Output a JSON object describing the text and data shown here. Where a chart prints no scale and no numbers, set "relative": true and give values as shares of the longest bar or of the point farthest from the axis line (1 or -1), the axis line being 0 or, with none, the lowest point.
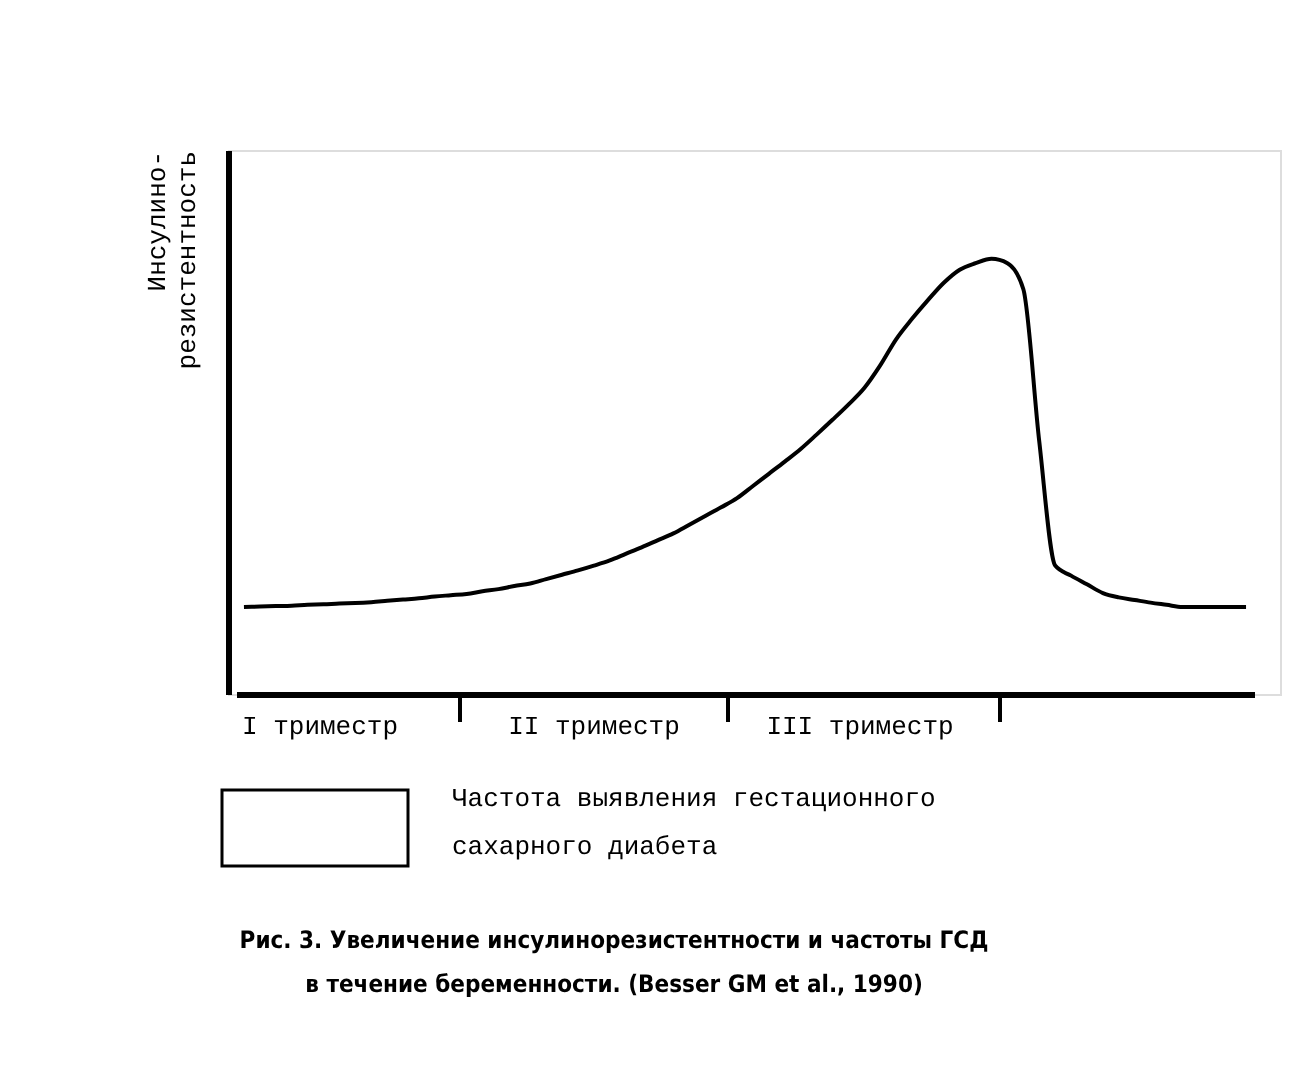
{
  "chart_data": {
    "type": "line",
    "relative": true,
    "ylabel": "Инсулино-\nрезистентность",
    "categories": [
      null,
      null,
      null,
      null,
      null,
      null,
      null,
      null,
      null,
      null,
      null,
      null,
      null,
      null,
      null,
      null,
      null,
      null,
      null,
      null,
      null,
      null,
      null,
      null,
      null,
      null,
      null,
      null,
      null,
      null,
      null,
      null,
      null,
      null,
      null,
      null,
      null,
      null,
      null,
      null,
      null,
      null,
      null,
      null,
      null,
      null,
      null,
      null,
      null,
      null,
      null,
      null,
      null,
      null,
      null,
      null,
      null,
      null,
      null,
      null,
      null,
      null,
      null,
      null
    ],
    "series": [
      {
        "color": "#000000",
        "values": [
          0.2,
          0.201,
          0.202,
          0.203,
          0.205,
          0.206,
          0.208,
          0.209,
          0.211,
          0.214,
          0.217,
          0.22,
          0.224,
          0.227,
          0.23,
          0.236,
          0.241,
          0.248,
          0.254,
          0.264,
          0.274,
          0.284,
          0.295,
          0.307,
          0.322,
          0.337,
          0.353,
          0.369,
          0.389,
          0.409,
          0.429,
          0.45,
          0.478,
          0.506,
          0.534,
          0.563,
          0.596,
          0.63,
          0.665,
          0.703,
          0.755,
          0.815,
          0.862,
          0.905,
          0.945,
          0.975,
          0.99,
          1.0,
          0.99,
          0.93,
          0.58,
          0.295,
          0.272,
          0.252,
          0.232,
          0.222,
          0.216,
          0.21,
          0.205,
          0.2,
          0.2,
          0.2,
          0.2,
          0.2
        ]
      }
    ],
    "annotations": [
      "I триместр",
      "II триместр",
      "III триместр",
      "Частота выявления гестационного сахарного диабета",
      "Рис. 3. Увеличение инсулинорезистентности и частоты ГСД в течение беременности. (Besser GM et al., 1990)"
    ],
    "grid": false,
    "marker": "none",
    "line_style": "solid"
  }
}
